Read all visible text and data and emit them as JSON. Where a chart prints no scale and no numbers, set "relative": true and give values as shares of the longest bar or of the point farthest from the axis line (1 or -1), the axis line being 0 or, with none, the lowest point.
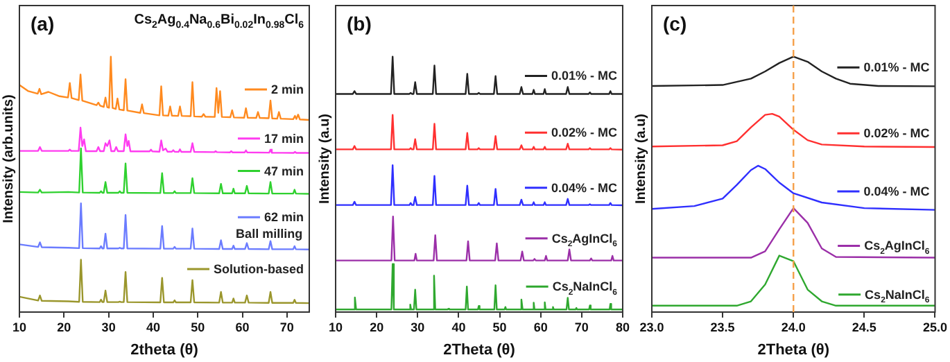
{
  "chart_data": [
    {
      "type": "line",
      "relative": true,
      "title": "(a)",
      "subtitle": "Cs$_{2}$Ag$_{0.4}$Na$_{0.6}$Bi$_{0.02}$In$_{0.98}$Cl$_{6}$",
      "xlabel": "2theta (θ)",
      "ylabel": "Intensity (arb.units)",
      "xlim": [
        10,
        75
      ],
      "xticks": [
        10,
        20,
        30,
        40,
        50,
        60,
        70
      ],
      "legend": "right",
      "annotations": [
        {
          "text": "Ball milling",
          "x": 66,
          "y": 0.29
        }
      ],
      "series": [
        {
          "name": "2 min",
          "color": "#ff8a1f",
          "x": [
            10,
            12,
            14.1,
            14.5,
            14.9,
            16.5,
            19,
            20.9,
            21.3,
            21.7,
            23.3,
            23.7,
            24.1,
            27.3,
            27.7,
            28.1,
            28.9,
            29.3,
            29.7,
            30.1,
            30.5,
            30.9,
            31.6,
            32,
            32.4,
            33.4,
            33.8,
            34.2,
            37.1,
            37.5,
            37.9,
            41.4,
            41.8,
            42.2,
            43.4,
            43.8,
            44.2,
            45.6,
            46,
            46.4,
            48.4,
            48.8,
            49.2,
            50.9,
            51.3,
            51.7,
            53.8,
            54.2,
            54.6,
            55,
            55.4,
            57.3,
            57.7,
            58.1,
            60.4,
            60.8,
            61.2,
            63.1,
            63.5,
            63.9,
            65.9,
            66.3,
            66.7,
            67.8,
            68.2,
            68.6,
            71.4,
            71.8,
            72.1,
            72.5,
            72.9,
            75
          ],
          "values": [
            0.889,
            0.865,
            0.855,
            0.874,
            0.853,
            0.862,
            0.845,
            0.84,
            0.897,
            0.838,
            0.83,
            0.93,
            0.828,
            0.81,
            0.82,
            0.808,
            0.803,
            0.84,
            0.802,
            0.8,
            1.0,
            0.799,
            0.795,
            0.836,
            0.793,
            0.79,
            0.912,
            0.789,
            0.78,
            0.813,
            0.779,
            0.77,
            0.884,
            0.77,
            0.769,
            0.805,
            0.769,
            0.768,
            0.805,
            0.768,
            0.767,
            0.9,
            0.766,
            0.765,
            0.775,
            0.765,
            0.764,
            0.877,
            0.78,
            0.865,
            0.764,
            0.763,
            0.79,
            0.762,
            0.761,
            0.798,
            0.761,
            0.76,
            0.783,
            0.76,
            0.759,
            0.828,
            0.758,
            0.757,
            0.783,
            0.757,
            0.755,
            0.768,
            0.756,
            0.773,
            0.754,
            0.752
          ]
        },
        {
          "name": "17 min",
          "color": "#ff3cf0",
          "x": [
            10,
            14.2,
            14.6,
            15,
            21,
            21.3,
            21.6,
            23.3,
            23.7,
            24.1,
            24.5,
            24.9,
            27.3,
            27.7,
            28.1,
            28.9,
            29.3,
            29.7,
            30.2,
            30.6,
            31.3,
            31.7,
            32.1,
            33.4,
            33.8,
            34.2,
            34.5,
            34.9,
            39.2,
            39.5,
            39.8,
            41.4,
            41.8,
            42.2,
            42.8,
            43.2,
            44.2,
            44.5,
            44.8,
            45.7,
            46,
            46.3,
            48.4,
            48.8,
            49.2,
            53.7,
            54,
            54.3,
            57.2,
            57.5,
            57.8,
            60.5,
            60.8,
            61.1,
            66,
            66.3,
            66.6,
            71.5,
            71.8,
            72.1,
            75
          ],
          "values": [
            0.631,
            0.631,
            0.646,
            0.631,
            0.631,
            0.636,
            0.631,
            0.631,
            0.722,
            0.65,
            0.676,
            0.63,
            0.63,
            0.646,
            0.63,
            0.63,
            0.661,
            0.65,
            0.672,
            0.63,
            0.63,
            0.646,
            0.63,
            0.63,
            0.696,
            0.65,
            0.67,
            0.629,
            0.629,
            0.636,
            0.629,
            0.628,
            0.672,
            0.633,
            0.64,
            0.628,
            0.628,
            0.634,
            0.628,
            0.627,
            0.637,
            0.627,
            0.627,
            0.661,
            0.627,
            0.626,
            0.63,
            0.626,
            0.625,
            0.63,
            0.625,
            0.625,
            0.633,
            0.625,
            0.624,
            0.636,
            0.624,
            0.623,
            0.627,
            0.623,
            0.623
          ]
        },
        {
          "name": "47 min",
          "color": "#2fd12f",
          "x": [
            10,
            14.2,
            14.6,
            15,
            21,
            23.4,
            23.8,
            24.2,
            28,
            28.3,
            28.6,
            28.9,
            29.3,
            29.7,
            32.2,
            32.5,
            32.8,
            33.4,
            33.8,
            34.2,
            41.6,
            42,
            42.4,
            44.5,
            44.8,
            45.1,
            48.4,
            48.8,
            49.2,
            54.8,
            55.2,
            55.6,
            57.7,
            58,
            58.3,
            60.6,
            61,
            61.4,
            65.9,
            66.3,
            66.7,
            71.4,
            71.7,
            72,
            75
          ],
          "values": [
            0.47,
            0.468,
            0.479,
            0.468,
            0.47,
            0.468,
            0.641,
            0.468,
            0.467,
            0.473,
            0.467,
            0.467,
            0.509,
            0.467,
            0.467,
            0.473,
            0.467,
            0.467,
            0.582,
            0.467,
            0.466,
            0.544,
            0.466,
            0.466,
            0.473,
            0.466,
            0.466,
            0.524,
            0.466,
            0.465,
            0.502,
            0.465,
            0.465,
            0.483,
            0.465,
            0.465,
            0.494,
            0.465,
            0.464,
            0.509,
            0.464,
            0.464,
            0.479,
            0.464,
            0.463
          ]
        },
        {
          "name": "62 min",
          "color": "#6b7cff",
          "x": [
            10,
            14.2,
            14.6,
            15,
            21,
            23.4,
            23.8,
            24.2,
            28,
            28.3,
            28.6,
            28.9,
            29.3,
            29.7,
            32.2,
            32.5,
            32.8,
            33.4,
            33.8,
            34.2,
            41.6,
            42,
            42.4,
            44.5,
            44.8,
            45.1,
            48.4,
            48.8,
            49.2,
            54.8,
            55.2,
            55.6,
            57.7,
            58,
            58.3,
            60.6,
            61,
            61.4,
            65.9,
            66.3,
            66.7,
            71.4,
            71.7,
            72,
            75
          ],
          "values": [
            0.265,
            0.255,
            0.273,
            0.254,
            0.252,
            0.25,
            0.426,
            0.25,
            0.249,
            0.258,
            0.249,
            0.249,
            0.307,
            0.249,
            0.249,
            0.252,
            0.249,
            0.249,
            0.38,
            0.249,
            0.248,
            0.337,
            0.248,
            0.248,
            0.255,
            0.248,
            0.248,
            0.327,
            0.248,
            0.247,
            0.281,
            0.247,
            0.247,
            0.26,
            0.247,
            0.247,
            0.27,
            0.247,
            0.246,
            0.278,
            0.246,
            0.246,
            0.258,
            0.246,
            0.245
          ]
        },
        {
          "name": "Solution-based",
          "color": "#9a962c",
          "x": [
            10,
            14.2,
            14.6,
            15,
            21,
            23.4,
            23.8,
            24.2,
            28,
            28.3,
            28.6,
            28.9,
            29.3,
            29.7,
            32.2,
            32.5,
            32.8,
            33.4,
            33.8,
            34.2,
            41.6,
            42,
            42.4,
            44.5,
            44.8,
            45.1,
            48.4,
            48.8,
            49.2,
            54.8,
            55.2,
            55.6,
            57.7,
            58,
            58.3,
            60.6,
            61,
            61.4,
            65.9,
            66.3,
            66.7,
            71.4,
            71.7,
            72,
            75
          ],
          "values": [
            0.06,
            0.045,
            0.065,
            0.044,
            0.042,
            0.04,
            0.205,
            0.04,
            0.039,
            0.049,
            0.039,
            0.039,
            0.084,
            0.039,
            0.039,
            0.041,
            0.039,
            0.039,
            0.157,
            0.039,
            0.038,
            0.134,
            0.038,
            0.038,
            0.046,
            0.038,
            0.038,
            0.125,
            0.038,
            0.037,
            0.079,
            0.037,
            0.037,
            0.053,
            0.037,
            0.037,
            0.065,
            0.037,
            0.036,
            0.079,
            0.036,
            0.036,
            0.048,
            0.036,
            0.035
          ]
        }
      ]
    },
    {
      "type": "line",
      "relative": true,
      "legend": "right",
      "title": "(b)",
      "xlabel": "2Theta (θ)",
      "ylabel": "Intensity (a.u)",
      "xlim": [
        10,
        80
      ],
      "xticks": [
        10,
        20,
        30,
        40,
        50,
        60,
        70,
        80
      ],
      "series": [
        {
          "name": "0.01% - MC",
          "color": "#222222",
          "x": [
            10,
            14.2,
            14.6,
            15,
            23.5,
            23.9,
            24.3,
            28,
            28.3,
            28.6,
            29,
            29.4,
            29.8,
            33.7,
            34.1,
            34.5,
            41.7,
            42.1,
            42.5,
            44.6,
            44.9,
            45.2,
            48.6,
            49,
            49.4,
            54.9,
            55.3,
            55.7,
            58,
            58.3,
            58.6,
            60.7,
            61,
            61.3,
            66.2,
            66.6,
            67,
            71.7,
            72,
            72.3,
            76.7,
            77,
            77.3,
            80
          ],
          "values": [
            0.854,
            0.854,
            0.865,
            0.854,
            0.854,
            1.0,
            0.854,
            0.854,
            0.858,
            0.854,
            0.854,
            0.9,
            0.854,
            0.854,
            0.965,
            0.854,
            0.854,
            0.933,
            0.854,
            0.854,
            0.858,
            0.854,
            0.854,
            0.924,
            0.854,
            0.854,
            0.881,
            0.854,
            0.854,
            0.87,
            0.854,
            0.854,
            0.873,
            0.854,
            0.854,
            0.881,
            0.854,
            0.854,
            0.86,
            0.854,
            0.854,
            0.865,
            0.854,
            0.854
          ]
        },
        {
          "name": "0.02% - MC",
          "color": "#ff3030",
          "x": [
            10,
            14.2,
            14.6,
            15,
            23.5,
            23.9,
            24.3,
            28,
            28.3,
            28.6,
            29,
            29.4,
            29.8,
            33.7,
            34.1,
            34.5,
            41.7,
            42.1,
            42.5,
            44.6,
            44.9,
            45.2,
            48.6,
            49,
            49.4,
            54.9,
            55.3,
            55.7,
            58,
            58.3,
            58.6,
            60.7,
            61,
            61.3,
            66.2,
            66.6,
            67,
            71.7,
            72,
            72.3,
            76.7,
            77,
            77.3,
            80
          ],
          "values": [
            0.637,
            0.637,
            0.65,
            0.637,
            0.637,
            0.772,
            0.637,
            0.637,
            0.642,
            0.637,
            0.637,
            0.677,
            0.637,
            0.637,
            0.737,
            0.637,
            0.637,
            0.701,
            0.637,
            0.637,
            0.642,
            0.637,
            0.637,
            0.689,
            0.637,
            0.637,
            0.653,
            0.637,
            0.637,
            0.647,
            0.637,
            0.637,
            0.647,
            0.637,
            0.637,
            0.659,
            0.637,
            0.637,
            0.642,
            0.637,
            0.637,
            0.642,
            0.637,
            0.636
          ]
        },
        {
          "name": "0.04% - MC",
          "color": "#2f2fff",
          "x": [
            10,
            14.2,
            14.6,
            15,
            23.5,
            23.9,
            24.3,
            28,
            28.3,
            28.6,
            29,
            29.4,
            29.8,
            33.7,
            34.1,
            34.5,
            41.7,
            42.1,
            42.5,
            44.6,
            44.9,
            45.2,
            48.6,
            49,
            49.4,
            54.9,
            55.3,
            55.7,
            58,
            58.3,
            58.6,
            60.7,
            61,
            61.3,
            66.2,
            66.6,
            67,
            71.7,
            72,
            72.3,
            76.7,
            77,
            77.3,
            80
          ],
          "values": [
            0.419,
            0.419,
            0.432,
            0.419,
            0.419,
            0.575,
            0.419,
            0.419,
            0.427,
            0.419,
            0.419,
            0.451,
            0.419,
            0.419,
            0.533,
            0.419,
            0.419,
            0.495,
            0.419,
            0.419,
            0.427,
            0.419,
            0.419,
            0.482,
            0.419,
            0.419,
            0.44,
            0.419,
            0.419,
            0.43,
            0.419,
            0.419,
            0.43,
            0.419,
            0.419,
            0.443,
            0.419,
            0.419,
            0.422,
            0.419,
            0.419,
            0.427,
            0.419,
            0.418
          ]
        },
        {
          "name": "Cs$_{2}$AgInCl$_{6}$",
          "color": "#9b2fa8",
          "x": [
            10,
            23.6,
            24,
            24.4,
            29.2,
            29.5,
            29.8,
            33.9,
            34.3,
            34.7,
            41.9,
            42.3,
            42.7,
            48.9,
            49.3,
            49.7,
            55.1,
            55.5,
            55.9,
            58.2,
            58.5,
            58.8,
            61,
            61.3,
            61.6,
            66.6,
            67,
            67.4,
            72,
            72.3,
            72.6,
            77.2,
            77.5,
            77.8,
            80
          ],
          "values": [
            0.202,
            0.202,
            0.374,
            0.202,
            0.202,
            0.228,
            0.202,
            0.202,
            0.301,
            0.202,
            0.202,
            0.277,
            0.202,
            0.202,
            0.269,
            0.202,
            0.202,
            0.237,
            0.202,
            0.202,
            0.208,
            0.202,
            0.202,
            0.22,
            0.202,
            0.202,
            0.245,
            0.202,
            0.202,
            0.21,
            0.202,
            0.202,
            0.22,
            0.202,
            0.202
          ]
        },
        {
          "name": "Cs$_{2}$NaInCl$_{6}$",
          "color": "#2fa82f",
          "x": [
            10,
            14.4,
            14.7,
            15,
            23.6,
            23.9,
            24.2,
            28,
            28.2,
            28.4,
            29.1,
            29.4,
            29.7,
            33.7,
            34,
            34.3,
            37.3,
            37.5,
            37.7,
            41.7,
            42,
            42.3,
            44.7,
            44.9,
            45.1,
            48.7,
            49,
            49.3,
            51.2,
            51.4,
            51.6,
            55,
            55.3,
            55.6,
            58.1,
            58.3,
            58.5,
            60.8,
            61,
            61.2,
            62.8,
            63,
            63.2,
            66.3,
            66.6,
            66.9,
            68.5,
            68.7,
            68.9,
            71.8,
            72,
            72.2,
            76.8,
            77,
            77.2,
            80
          ],
          "values": [
            0.01,
            0.01,
            0.057,
            0.01,
            0.01,
            0.188,
            0.01,
            0.01,
            0.029,
            0.01,
            0.01,
            0.088,
            0.01,
            0.01,
            0.143,
            0.01,
            0.01,
            0.013,
            0.01,
            0.01,
            0.1,
            0.01,
            0.01,
            0.024,
            0.01,
            0.01,
            0.105,
            0.01,
            0.01,
            0.02,
            0.01,
            0.01,
            0.049,
            0.01,
            0.01,
            0.037,
            0.01,
            0.01,
            0.038,
            0.01,
            0.01,
            0.02,
            0.01,
            0.01,
            0.056,
            0.01,
            0.01,
            0.016,
            0.01,
            0.01,
            0.026,
            0.01,
            0.01,
            0.032,
            0.01,
            0.01
          ]
        }
      ]
    },
    {
      "type": "line",
      "relative": true,
      "legend": "right",
      "title": "(c)",
      "xlabel": "2Theta (θ)",
      "ylabel": "Intensity (a.u)",
      "xlim": [
        23,
        25
      ],
      "xticks": [
        {
          "value": 23,
          "label": "23.0"
        },
        {
          "value": 23.5,
          "label": "23.5"
        },
        {
          "value": 24,
          "label": "24.0"
        },
        {
          "value": 24.5,
          "label": "24.5"
        },
        {
          "value": 25,
          "label": "25.0"
        }
      ],
      "ref_lines": [
        {
          "axis": "x",
          "value": 24,
          "color": "#f5a04a",
          "line_style": "dashed"
        }
      ],
      "series": [
        {
          "name": "0.01% - MC",
          "color": "#222222",
          "x": [
            23,
            23.5,
            23.7,
            23.8,
            23.9,
            24,
            24.1,
            24.2,
            24.3,
            24.4,
            24.6,
            25
          ],
          "values": [
            0.885,
            0.889,
            0.914,
            0.942,
            0.975,
            1.0,
            0.98,
            0.942,
            0.914,
            0.894,
            0.885,
            0.884
          ]
        },
        {
          "name": "0.02% - MC",
          "color": "#ff3030",
          "x": [
            23,
            23.5,
            23.6,
            23.7,
            23.8,
            23.85,
            23.9,
            24,
            24.1,
            24.2,
            24.5,
            25
          ],
          "values": [
            0.648,
            0.653,
            0.669,
            0.723,
            0.772,
            0.776,
            0.765,
            0.714,
            0.673,
            0.656,
            0.648,
            0.646
          ]
        },
        {
          "name": "0.04% - MC",
          "color": "#2f2fff",
          "x": [
            23,
            23.3,
            23.5,
            23.6,
            23.7,
            23.75,
            23.8,
            23.9,
            24,
            24.2,
            24.5,
            25
          ],
          "values": [
            0.404,
            0.415,
            0.444,
            0.498,
            0.556,
            0.573,
            0.56,
            0.507,
            0.465,
            0.429,
            0.407,
            0.4
          ]
        },
        {
          "name": "Cs$_{2}$AgInCl$_{6}$",
          "color": "#9b2fa8",
          "x": [
            23,
            23.7,
            23.8,
            23.9,
            24,
            24.1,
            24.2,
            24.3,
            25
          ],
          "values": [
            0.213,
            0.213,
            0.238,
            0.324,
            0.407,
            0.349,
            0.249,
            0.216,
            0.213
          ]
        },
        {
          "name": "Cs$_{2}$NaInCl$_{6}$",
          "color": "#2fa82f",
          "x": [
            23,
            23.6,
            23.7,
            23.8,
            23.9,
            24,
            24.1,
            24.2,
            24.3,
            25
          ],
          "values": [
            0.025,
            0.025,
            0.042,
            0.108,
            0.221,
            0.199,
            0.088,
            0.042,
            0.025,
            0.025
          ]
        }
      ]
    }
  ]
}
